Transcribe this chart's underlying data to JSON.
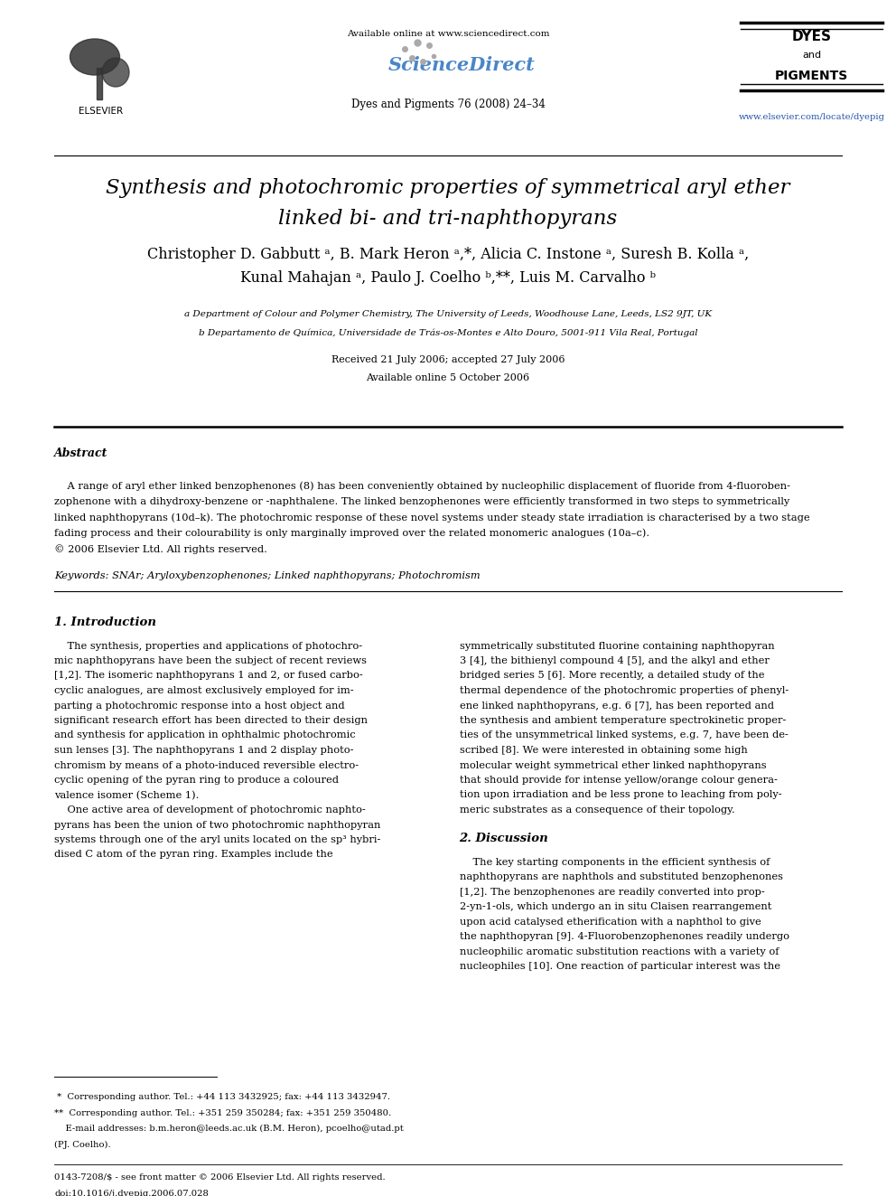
{
  "title_line1": "Synthesis and photochromic properties of symmetrical aryl ether",
  "title_line2": "linked bi- and tri-naphthopyrans",
  "affil_a": "a Department of Colour and Polymer Chemistry, The University of Leeds, Woodhouse Lane, Leeds, LS2 9JT, UK",
  "affil_b": "b Departamento de Química, Universidade de Trás-os-Montes e Alto Douro, 5001-911 Vila Real, Portugal",
  "received": "Received 21 July 2006; accepted 27 July 2006",
  "available": "Available online 5 October 2006",
  "journal": "Dyes and Pigments 76 (2008) 24–34",
  "available_online": "Available online at www.sciencedirect.com",
  "url": "www.elsevier.com/locate/dyepig",
  "abstract_title": "Abstract",
  "keywords": "Keywords: SNAr; Aryloxybenzophenones; Linked naphthopyrans; Photochromism",
  "section1_title": "1. Introduction",
  "section2_title": "2. Discussion",
  "footnote1": " *  Corresponding author. Tel.: +44 113 3432925; fax: +44 113 3432947.",
  "footnote2": "**  Corresponding author. Tel.: +351 259 350284; fax: +351 259 350480.",
  "footnote3": "    E-mail addresses: b.m.heron@leeds.ac.uk (B.M. Heron), pcoelho@utad.pt\n(PJ. Coelho).",
  "footer1": "0143-7208/$ - see front matter © 2006 Elsevier Ltd. All rights reserved.",
  "footer2": "doi:10.1016/j.dyepig.2006.07.028",
  "bg_color": "#ffffff",
  "text_color": "#000000",
  "link_color": "#2255aa",
  "title_fontsize": 16.5,
  "author_fontsize": 11.5,
  "affil_fontsize": 7.5,
  "body_fontsize": 8.2,
  "small_fontsize": 7.2
}
